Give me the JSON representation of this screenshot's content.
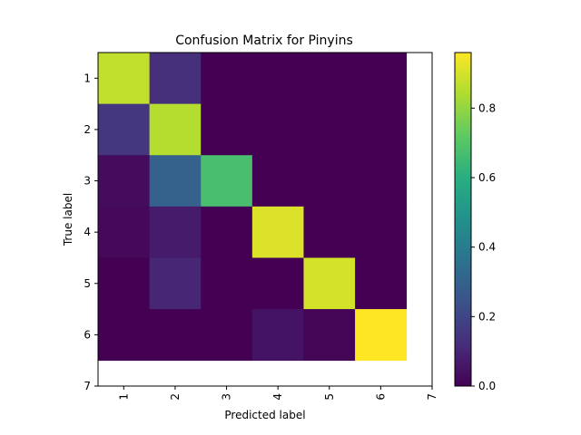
{
  "chart_data": {
    "type": "heatmap",
    "title": "Confusion Matrix for Pinyins",
    "xlabel": "Predicted label",
    "ylabel": "True label",
    "x_ticks": [
      "1",
      "2",
      "3",
      "4",
      "5",
      "6",
      "7"
    ],
    "y_ticks": [
      "1",
      "2",
      "3",
      "4",
      "5",
      "6",
      "7"
    ],
    "x_range": [
      0.5,
      7.0
    ],
    "y_range": [
      0.5,
      7.0
    ],
    "rows": [
      "1",
      "2",
      "3",
      "4",
      "5",
      "6"
    ],
    "columns": [
      "1",
      "2",
      "3",
      "4",
      "5",
      "6"
    ],
    "values": [
      [
        0.87,
        0.13,
        0.0,
        0.0,
        0.0,
        0.0
      ],
      [
        0.15,
        0.85,
        0.0,
        0.0,
        0.0,
        0.0
      ],
      [
        0.03,
        0.3,
        0.67,
        0.0,
        0.0,
        0.0
      ],
      [
        0.02,
        0.07,
        0.0,
        0.91,
        0.0,
        0.0
      ],
      [
        0.0,
        0.1,
        0.0,
        0.0,
        0.9,
        0.0
      ],
      [
        0.0,
        0.0,
        0.0,
        0.05,
        0.01,
        0.96
      ]
    ],
    "colorbar": {
      "colormap": "viridis",
      "range": [
        0.0,
        0.96
      ],
      "ticks": [
        "0.0",
        "0.2",
        "0.4",
        "0.6",
        "0.8"
      ],
      "tick_values": [
        0.0,
        0.2,
        0.4,
        0.6,
        0.8
      ]
    },
    "grid": false
  }
}
